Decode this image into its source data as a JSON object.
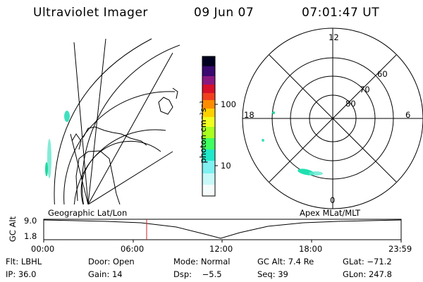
{
  "header": {
    "title": "Ultraviolet Imager",
    "date": "09 Jun 07",
    "time": "07:01:47 UT"
  },
  "colorbar": {
    "unit_label": "photon cm⁻²s⁻¹",
    "ticks": [
      "100",
      "10"
    ],
    "scale": "log",
    "colors": [
      "#000020",
      "#1a0a5a",
      "#5a1a8a",
      "#b01a6a",
      "#d8102a",
      "#f04020",
      "#ff8c00",
      "#ffd000",
      "#f0ff20",
      "#a8ff20",
      "#40ff60",
      "#20e8c8",
      "#80f0f0",
      "#ffffff"
    ]
  },
  "polar": {
    "lat_labels": [
      "60",
      "70",
      "80"
    ],
    "mlt_labels": {
      "top": "12",
      "left": "18",
      "right": "6",
      "bottom": "0"
    }
  },
  "geo_label": "Geographic Lat/Lon",
  "apex_label": "Apex MLat/MLT",
  "alt_plot": {
    "ylabel": "GC Alt",
    "ytick_top": "9.0",
    "ytick_bottom": "1.8",
    "xticks": [
      "00:00",
      "06:00",
      "12:00",
      "18:00",
      "23:59"
    ],
    "current_time_marker": "07:01:47",
    "marker_color": "#d02020"
  },
  "status": {
    "filter": "Flt: LBHL",
    "door": "Door: Open",
    "mode": "Mode: Normal",
    "gc_alt": "GC Alt: 7.4 Re",
    "glat": "GLat: −71.2",
    "ip": "IP: 36.0",
    "gain": "Gain: 14",
    "dsp": "Dsp:    −5.5",
    "seq": "Seq: 39",
    "glon": "GLon: 247.8"
  }
}
